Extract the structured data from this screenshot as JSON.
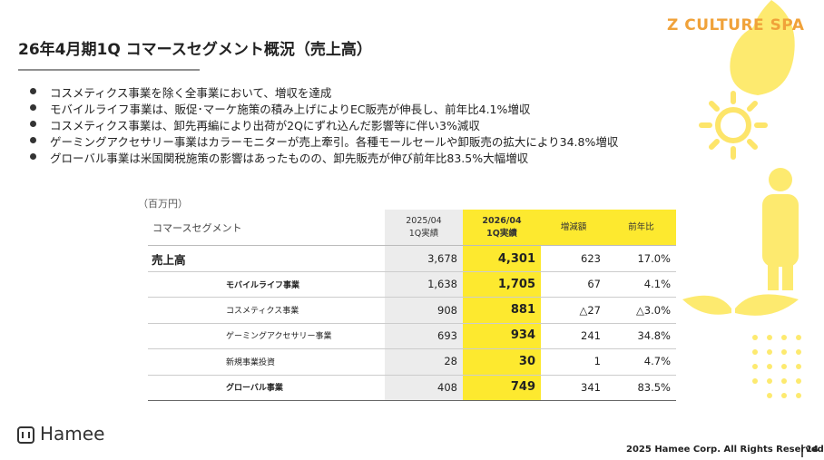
{
  "header": {
    "title": "26年4月期1Q コマースセグメント概況（売上高）",
    "brand": "Z CULTURE SPA"
  },
  "bullets": [
    "コスメティクス事業を除く全事業において、増収を達成",
    "モバイルライフ事業は、販促･マーケ施策の積み上げによりEC販売が伸長し、前年比4.1%増収",
    "コスメティクス事業は、卸先再編により出荷が2Qにずれ込んだ影響等に伴い3%減収",
    "ゲーミングアクセサリー事業はカラーモニターが売上牽引。各種モールセールや卸販売の拡大により34.8%増収",
    "グローバル事業は米国関税施策の影響はあったものの、卸先販売が伸び前年比83.5%大幅増収"
  ],
  "table": {
    "unit": "（百万円）",
    "segment_header": "コマースセグメント",
    "columns": [
      [
        "2025/04",
        "1Q実績"
      ],
      [
        "2026/04",
        "1Q実績"
      ],
      [
        "増減額"
      ],
      [
        "前年比"
      ]
    ],
    "rows": [
      [
        "売上高",
        "3,678",
        "4,301",
        "623",
        "17.0%"
      ],
      [
        "モバイルライフ事業",
        "1,638",
        "1,705",
        "67",
        "4.1%"
      ],
      [
        "コスメティクス事業",
        "908",
        "881",
        "△27",
        "△3.0%"
      ],
      [
        "ゲーミングアクセサリー事業",
        "693",
        "934",
        "241",
        "34.8%"
      ],
      [
        "新規事業投資",
        "28",
        "30",
        "1",
        "4.7%"
      ],
      [
        "グローバル事業",
        "408",
        "749",
        "341",
        "83.5%"
      ]
    ]
  },
  "footer": {
    "logo": "Hamee",
    "copyright": "2025 Hamee Corp. All Rights Reserved",
    "page": "14"
  }
}
